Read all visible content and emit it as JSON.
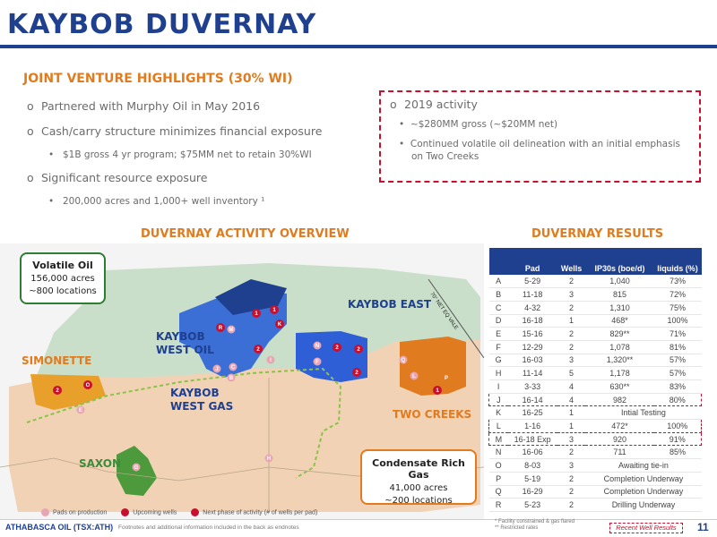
{
  "title": "KAYBOB DUVERNAY",
  "jv": {
    "heading": "JOINT VENTURE HIGHLIGHTS (30% WI)",
    "bullets": [
      "Partnered with Murphy Oil in May 2016",
      "Cash/carry structure minimizes financial exposure",
      "$1B gross 4 yr program; $75MM net to retain 30%WI",
      "Significant resource exposure",
      "200,000 acres and 1,000+ well inventory ¹"
    ],
    "marker_main": "o",
    "marker_sub": "•"
  },
  "activity2019": {
    "heading": "2019 activity",
    "items": [
      "~$280MM gross (~$20MM net)",
      "Continued volatile oil delineation with an initial emphasis on Two Creeks"
    ]
  },
  "map": {
    "heading": "DUVERNAY ACTIVITY OVERVIEW",
    "volatile_oil": {
      "title": "Volatile Oil",
      "acres": "156,000 acres",
      "locations": "~800 locations"
    },
    "condensate": {
      "title": "Condensate Rich Gas",
      "acres": "41,000 acres",
      "locations": "~200 locations"
    },
    "regions": {
      "kaybob_east": "KAYBOB EAST",
      "kaybob_west_oil_1": "KAYBOB",
      "kaybob_west_oil_2": "WEST OIL",
      "simonette": "SIMONETTE",
      "kaybob_west_gas_1": "KAYBOB",
      "kaybob_west_gas_2": "WEST GAS",
      "two_creeks": "TWO CREEKS",
      "saxon": "SAXON"
    },
    "fairway_label": "70° NET EQ VALE",
    "legend": [
      "Pads on production",
      "Upcoming wells",
      "Next phase of activity (# of wells per pad)"
    ],
    "pad_labels": [
      "A",
      "B",
      "C",
      "D",
      "E",
      "F",
      "G",
      "H",
      "I",
      "J",
      "K",
      "L",
      "M",
      "N",
      "O",
      "P",
      "Q",
      "R"
    ],
    "well_counts": [
      "1",
      "1",
      "1",
      "2",
      "2",
      "2",
      "2",
      "2",
      "1",
      "2",
      "1"
    ],
    "colors": {
      "green_area": "#c9dfc9",
      "tan_area": "#f1d2b5",
      "blue": "#1f3f8f",
      "orange": "#e07b1f",
      "green": "#3c8c3c",
      "red": "#c8102e",
      "pink": "#e8a6b4"
    }
  },
  "results": {
    "heading": "DUVERNAY RESULTS",
    "columns": [
      "",
      "Pad",
      "Wells",
      "IP30s (boe/d)",
      "liquids (%)"
    ],
    "rows": [
      [
        "A",
        "5-29",
        "2",
        "1,040",
        "73%"
      ],
      [
        "B",
        "11-18",
        "3",
        "815",
        "72%"
      ],
      [
        "C",
        "4-32",
        "2",
        "1,310",
        "75%"
      ],
      [
        "D",
        "16-18",
        "1",
        "468*",
        "100%"
      ],
      [
        "E",
        "15-16",
        "2",
        "829**",
        "71%"
      ],
      [
        "F",
        "12-29",
        "2",
        "1,078",
        "81%"
      ],
      [
        "G",
        "16-03",
        "3",
        "1,320**",
        "57%"
      ],
      [
        "H",
        "11-14",
        "5",
        "1,178",
        "57%"
      ],
      [
        "I",
        "3-33",
        "4",
        "630**",
        "83%"
      ],
      [
        "J",
        "16-14",
        "4",
        "982",
        "80%"
      ],
      [
        "K",
        "16-25",
        "1",
        "Intial Testing",
        ""
      ],
      [
        "L",
        "1-16",
        "1",
        "472*",
        "100%"
      ],
      [
        "M",
        "16-18 Exp",
        "3",
        "920",
        "91%"
      ],
      [
        "N",
        "16-06",
        "2",
        "711",
        "85%"
      ],
      [
        "O",
        "8-03",
        "3",
        "Awaiting tie-in",
        ""
      ],
      [
        "P",
        "5-19",
        "2",
        "Completion Underway",
        ""
      ],
      [
        "Q",
        "16-29",
        "2",
        "Completion Underway",
        ""
      ],
      [
        "R",
        "5-23",
        "2",
        "Drilling Underway",
        ""
      ]
    ],
    "highlight_rows": [
      "J",
      "L",
      "M"
    ]
  },
  "footer": {
    "company": "ATHABASCA OIL (TSX:ATH)",
    "note": "Footnotes and additional information included in the back as endnotes",
    "note1": "* Facility constrained & gas flared",
    "note2": "** Restricted rates",
    "recent": "Recent Well Results",
    "page": "11"
  }
}
